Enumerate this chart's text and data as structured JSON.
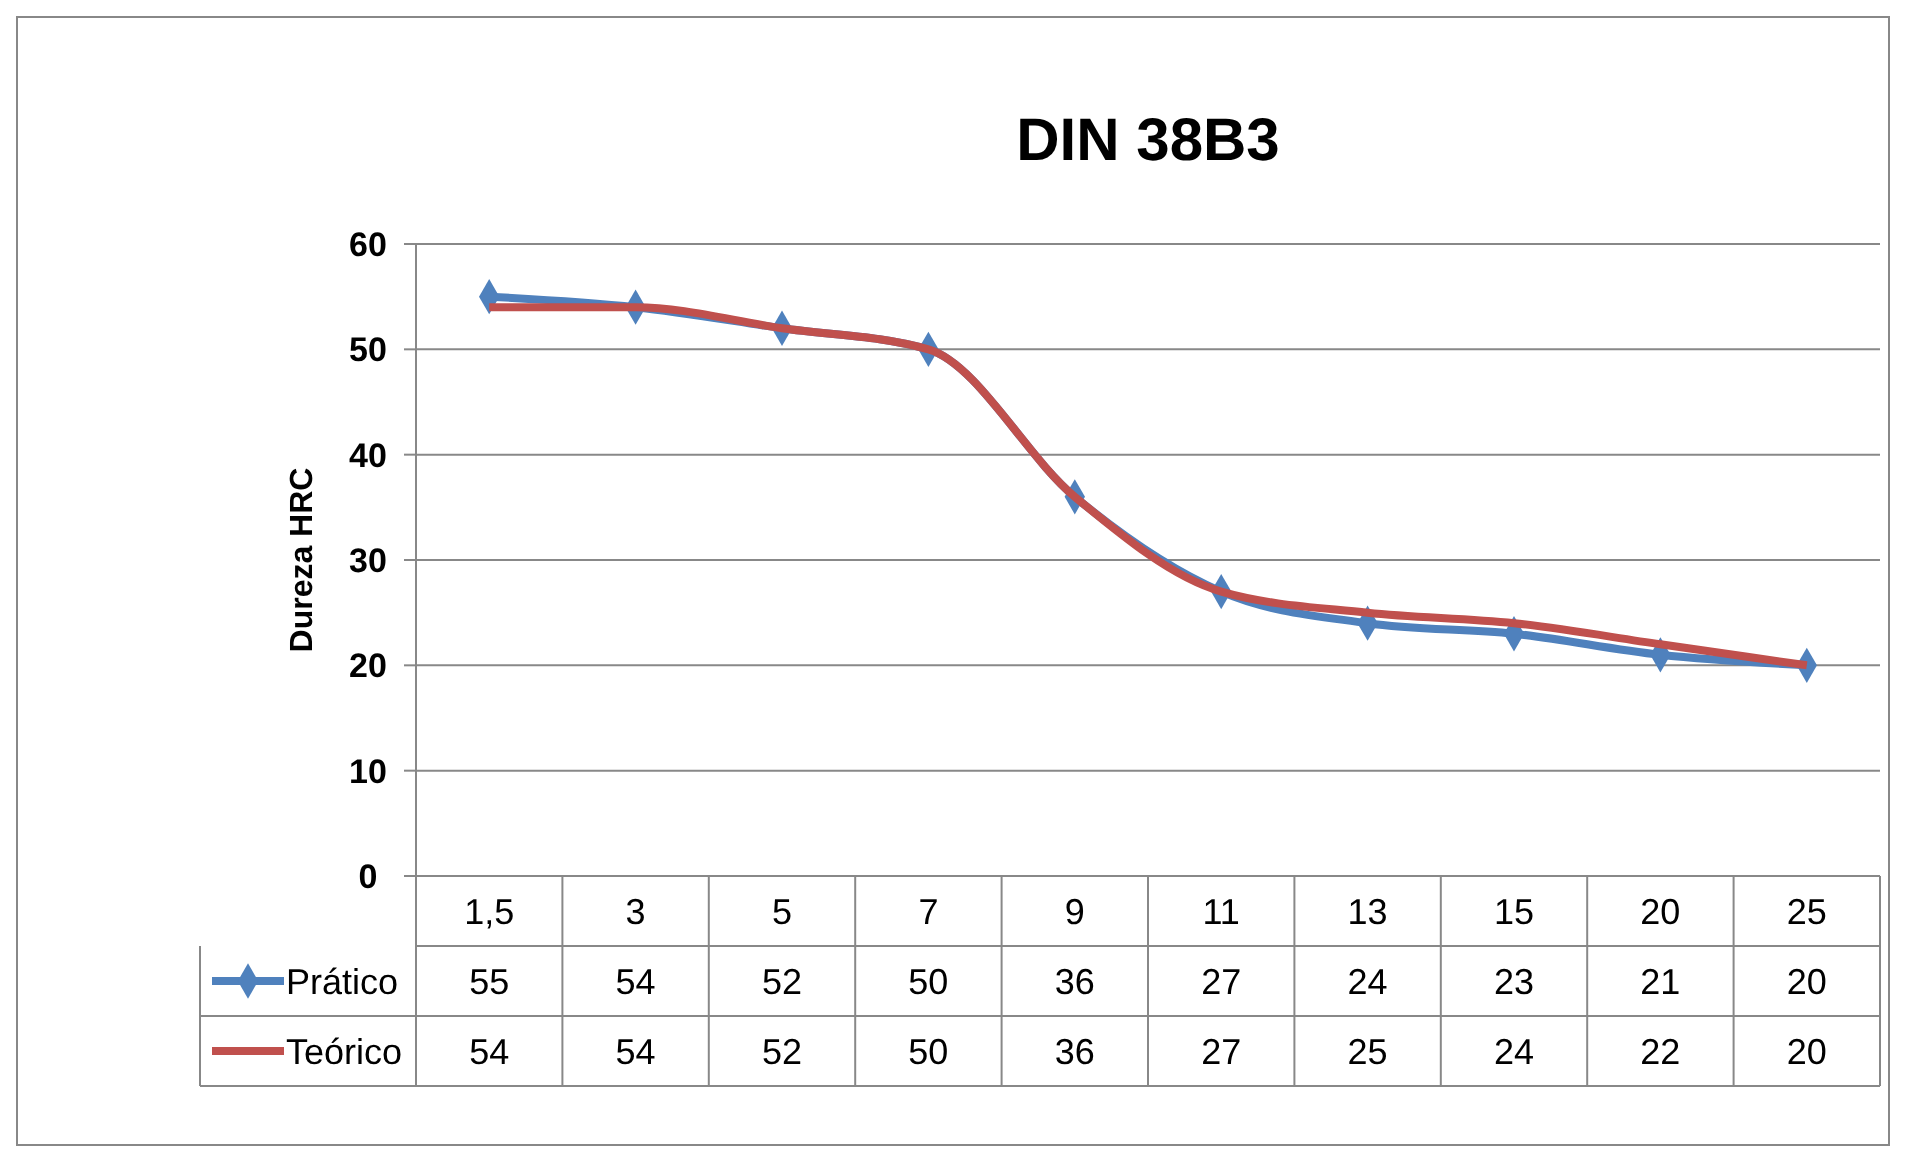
{
  "chart_data": {
    "type": "line",
    "title": "DIN 38B3",
    "ylabel": "Dureza HRC",
    "categories": [
      "1,5",
      "3",
      "5",
      "7",
      "9",
      "11",
      "13",
      "15",
      "20",
      "25"
    ],
    "series": [
      {
        "name": "Prático",
        "color": "#4f81bd",
        "marker": "diamond",
        "values": [
          55,
          54,
          52,
          50,
          36,
          27,
          24,
          23,
          21,
          20
        ]
      },
      {
        "name": "Teórico",
        "color": "#c0504d",
        "marker": "none",
        "values": [
          54,
          54,
          52,
          50,
          36,
          27,
          25,
          24,
          22,
          20
        ]
      }
    ],
    "ylim": [
      0,
      60
    ],
    "yticks": [
      0,
      10,
      20,
      30,
      40,
      50,
      60
    ],
    "grid": "y",
    "data_labels": true,
    "legend": "bottom"
  }
}
